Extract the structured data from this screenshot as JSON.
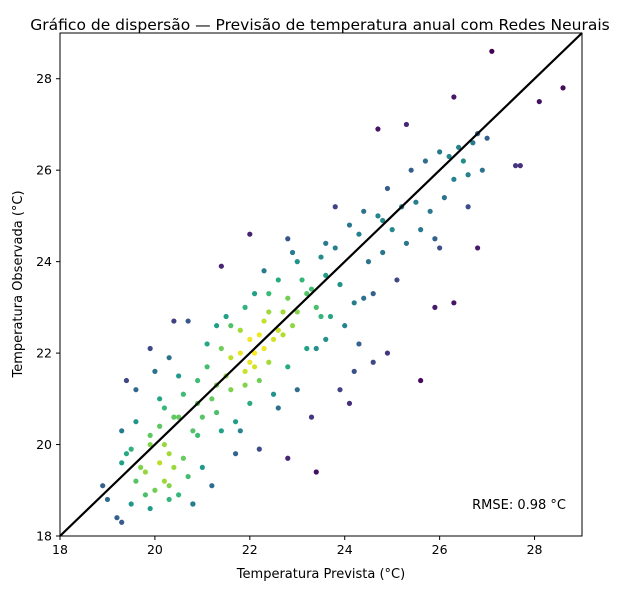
{
  "chart_data": {
    "type": "scatter",
    "title": "Gráfico de dispersão — Previsão de temperatura anual com Redes Neurais",
    "xlabel": "Temperatura Prevista (°C)",
    "ylabel": "Temperatura Observada (°C)",
    "xlim": [
      18,
      29
    ],
    "ylim": [
      18,
      29
    ],
    "xticks": [
      18,
      20,
      22,
      24,
      26,
      28
    ],
    "yticks": [
      18,
      20,
      22,
      24,
      26,
      28
    ],
    "xtick_labels": [
      "18",
      "20",
      "22",
      "24",
      "26",
      "28"
    ],
    "ytick_labels": [
      "18",
      "20",
      "22",
      "24",
      "26",
      "28"
    ],
    "grid": false,
    "annotation": "RMSE: 0.98 °C",
    "annotation_position": "bottom-right",
    "identity_line": {
      "from": [
        18,
        18
      ],
      "to": [
        29,
        29
      ],
      "color": "#000000"
    },
    "colormap": "viridis (point density)",
    "series": [
      {
        "points": [
          [
            18.9,
            19.1
          ],
          [
            19.0,
            18.8
          ],
          [
            19.2,
            18.4
          ],
          [
            19.3,
            18.3
          ],
          [
            19.5,
            18.7
          ],
          [
            19.3,
            19.6
          ],
          [
            19.4,
            19.8
          ],
          [
            19.6,
            19.2
          ],
          [
            19.8,
            18.9
          ],
          [
            19.9,
            18.6
          ],
          [
            19.7,
            19.5
          ],
          [
            19.5,
            19.9
          ],
          [
            19.8,
            19.4
          ],
          [
            20.0,
            19.0
          ],
          [
            20.2,
            19.2
          ],
          [
            20.1,
            19.6
          ],
          [
            19.3,
            20.3
          ],
          [
            19.4,
            21.4
          ],
          [
            19.6,
            21.2
          ],
          [
            19.9,
            20.2
          ],
          [
            20.1,
            20.4
          ],
          [
            20.2,
            20.0
          ],
          [
            20.3,
            19.8
          ],
          [
            20.4,
            19.5
          ],
          [
            20.3,
            19.1
          ],
          [
            20.5,
            18.9
          ],
          [
            20.7,
            19.3
          ],
          [
            20.8,
            18.7
          ],
          [
            20.6,
            19.7
          ],
          [
            20.4,
            20.6
          ],
          [
            20.2,
            20.8
          ],
          [
            20.0,
            21.6
          ],
          [
            19.9,
            22.1
          ],
          [
            20.1,
            21.0
          ],
          [
            20.5,
            21.5
          ],
          [
            20.3,
            21.9
          ],
          [
            20.7,
            22.7
          ],
          [
            20.6,
            21.1
          ],
          [
            20.8,
            20.3
          ],
          [
            20.9,
            20.9
          ],
          [
            20.9,
            20.2
          ],
          [
            21.0,
            20.6
          ],
          [
            21.1,
            21.7
          ],
          [
            21.2,
            21.0
          ],
          [
            21.3,
            21.3
          ],
          [
            21.3,
            20.7
          ],
          [
            21.4,
            22.1
          ],
          [
            21.4,
            23.9
          ],
          [
            21.5,
            21.5
          ],
          [
            21.6,
            21.9
          ],
          [
            21.6,
            21.2
          ],
          [
            21.7,
            20.5
          ],
          [
            21.8,
            22.5
          ],
          [
            21.8,
            22.0
          ],
          [
            21.9,
            21.6
          ],
          [
            21.9,
            21.3
          ],
          [
            22.0,
            21.8
          ],
          [
            22.0,
            22.3
          ],
          [
            22.1,
            22.0
          ],
          [
            22.1,
            21.7
          ],
          [
            22.2,
            22.4
          ],
          [
            22.2,
            21.4
          ],
          [
            22.3,
            22.1
          ],
          [
            22.3,
            22.7
          ],
          [
            22.4,
            21.8
          ],
          [
            22.4,
            23.3
          ],
          [
            22.5,
            22.3
          ],
          [
            22.5,
            21.1
          ],
          [
            22.6,
            22.5
          ],
          [
            22.6,
            20.8
          ],
          [
            22.7,
            22.9
          ],
          [
            22.7,
            22.4
          ],
          [
            22.8,
            23.2
          ],
          [
            22.8,
            21.7
          ],
          [
            22.9,
            22.6
          ],
          [
            22.9,
            24.2
          ],
          [
            23.0,
            22.9
          ],
          [
            23.0,
            21.2
          ],
          [
            23.1,
            23.6
          ],
          [
            23.2,
            22.1
          ],
          [
            23.3,
            23.4
          ],
          [
            23.3,
            20.6
          ],
          [
            23.4,
            23.0
          ],
          [
            23.5,
            24.1
          ],
          [
            23.6,
            23.7
          ],
          [
            23.6,
            22.3
          ],
          [
            23.7,
            22.8
          ],
          [
            23.8,
            24.3
          ],
          [
            23.9,
            23.5
          ],
          [
            24.0,
            22.6
          ],
          [
            24.1,
            24.8
          ],
          [
            24.2,
            23.1
          ],
          [
            24.3,
            24.6
          ],
          [
            24.3,
            22.2
          ],
          [
            24.4,
            25.1
          ],
          [
            24.5,
            24.0
          ],
          [
            24.6,
            23.3
          ],
          [
            24.7,
            25.0
          ],
          [
            24.8,
            24.2
          ],
          [
            24.9,
            25.6
          ],
          [
            25.0,
            24.7
          ],
          [
            25.1,
            23.6
          ],
          [
            25.2,
            25.2
          ],
          [
            25.3,
            24.4
          ],
          [
            25.4,
            26.0
          ],
          [
            25.5,
            25.3
          ],
          [
            25.6,
            24.7
          ],
          [
            25.7,
            26.2
          ],
          [
            25.8,
            25.1
          ],
          [
            25.9,
            24.5
          ],
          [
            26.0,
            26.4
          ],
          [
            26.1,
            25.4
          ],
          [
            26.2,
            26.3
          ],
          [
            26.3,
            25.8
          ],
          [
            26.4,
            26.5
          ],
          [
            26.5,
            26.2
          ],
          [
            26.6,
            25.9
          ],
          [
            26.7,
            26.6
          ],
          [
            26.8,
            26.8
          ],
          [
            27.0,
            26.7
          ],
          [
            26.6,
            25.2
          ],
          [
            26.9,
            26.0
          ],
          [
            26.8,
            24.3
          ],
          [
            26.0,
            24.3
          ],
          [
            26.3,
            23.1
          ],
          [
            25.9,
            23.0
          ],
          [
            27.6,
            26.1
          ],
          [
            27.7,
            26.1
          ],
          [
            28.1,
            27.5
          ],
          [
            28.6,
            27.8
          ],
          [
            27.1,
            28.6
          ],
          [
            26.3,
            27.6
          ],
          [
            25.3,
            27.0
          ],
          [
            24.7,
            26.9
          ],
          [
            24.9,
            22.0
          ],
          [
            25.6,
            21.4
          ],
          [
            24.1,
            20.9
          ],
          [
            23.4,
            19.4
          ],
          [
            22.8,
            19.7
          ],
          [
            22.2,
            19.9
          ],
          [
            21.7,
            19.8
          ],
          [
            20.8,
            18.7
          ],
          [
            21.0,
            19.5
          ],
          [
            21.8,
            20.3
          ],
          [
            20.5,
            20.6
          ],
          [
            20.4,
            22.7
          ],
          [
            19.9,
            20.0
          ],
          [
            21.1,
            22.2
          ],
          [
            21.6,
            22.6
          ],
          [
            22.0,
            24.6
          ],
          [
            22.3,
            23.8
          ],
          [
            22.8,
            24.5
          ],
          [
            23.0,
            24.0
          ],
          [
            23.6,
            24.4
          ],
          [
            24.4,
            23.2
          ],
          [
            24.6,
            21.8
          ],
          [
            24.2,
            21.6
          ],
          [
            23.9,
            21.2
          ],
          [
            23.5,
            22.8
          ],
          [
            23.2,
            23.3
          ],
          [
            21.4,
            20.3
          ],
          [
            21.9,
            23.0
          ],
          [
            22.4,
            22.9
          ],
          [
            22.6,
            23.6
          ],
          [
            21.3,
            22.6
          ],
          [
            21.5,
            22.8
          ],
          [
            20.9,
            21.4
          ],
          [
            22.1,
            23.3
          ],
          [
            23.8,
            25.2
          ],
          [
            24.8,
            24.9
          ],
          [
            23.4,
            22.1
          ],
          [
            22.0,
            20.9
          ],
          [
            21.2,
            19.1
          ],
          [
            20.3,
            18.8
          ],
          [
            19.6,
            20.5
          ]
        ]
      }
    ]
  }
}
